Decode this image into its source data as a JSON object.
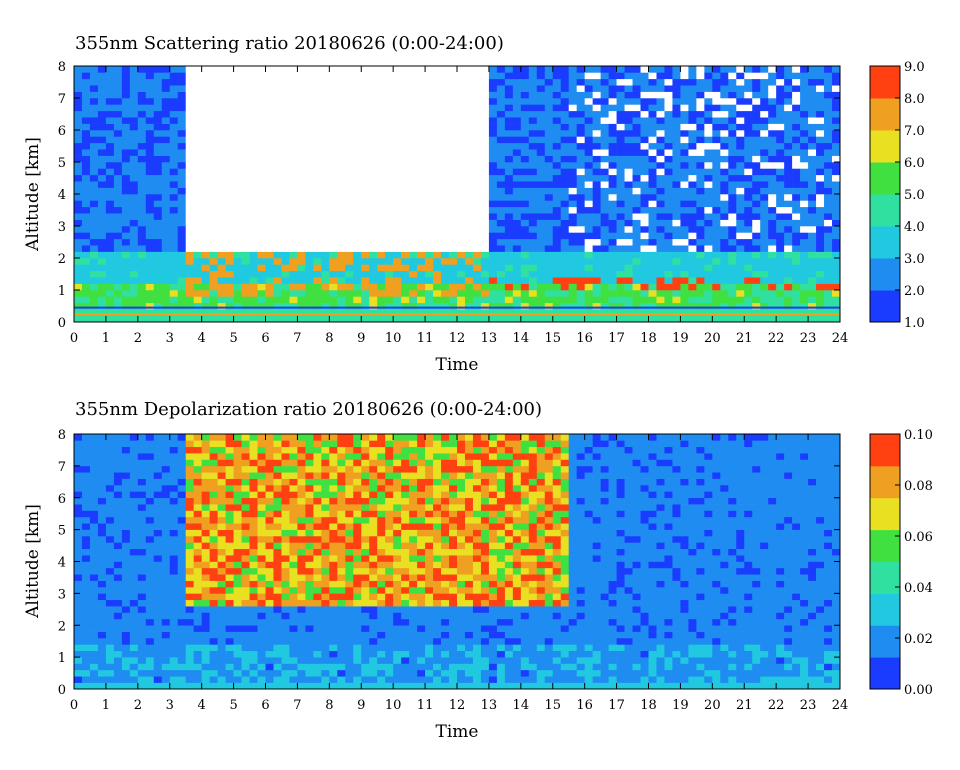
{
  "chart_data": [
    {
      "type": "heatmap",
      "title": "355nm Scattering ratio  20180626 (0:00-24:00)",
      "xlabel": "Time",
      "ylabel": "Altitude [km]",
      "xlim": [
        0,
        24
      ],
      "ylim": [
        0,
        8
      ],
      "x_ticks": [
        "0",
        "1",
        "2",
        "3",
        "4",
        "5",
        "6",
        "7",
        "8",
        "9",
        "10",
        "11",
        "12",
        "13",
        "14",
        "15",
        "16",
        "17",
        "18",
        "19",
        "20",
        "21",
        "22",
        "23",
        "24"
      ],
      "y_ticks": [
        "0",
        "1",
        "2",
        "3",
        "4",
        "5",
        "6",
        "7",
        "8"
      ],
      "colorbar": {
        "range": [
          1.0,
          9.0
        ],
        "ticks": [
          "1.0",
          "2.0",
          "3.0",
          "4.0",
          "5.0",
          "6.0",
          "7.0",
          "8.0",
          "9.0"
        ]
      },
      "colormap": [
        "#1a3cff",
        "#1e8cf0",
        "#20c8e0",
        "#30e0a0",
        "#40e040",
        "#e8e020",
        "#f0a020",
        "#ff4010"
      ],
      "features": {
        "cloud_gap_hours": [
          3.4,
          13.0
        ],
        "low_cloud_top_km": 2.0,
        "boundary_layer_top_km": 1.0,
        "surface_line_km": 0.45
      }
    },
    {
      "type": "heatmap",
      "title": "355nm Depolarization ratio  20180626 (0:00-24:00)",
      "xlabel": "Time",
      "ylabel": "Altitude [km]",
      "xlim": [
        0,
        24
      ],
      "ylim": [
        0,
        8
      ],
      "x_ticks": [
        "0",
        "1",
        "2",
        "3",
        "4",
        "5",
        "6",
        "7",
        "8",
        "9",
        "10",
        "11",
        "12",
        "13",
        "14",
        "15",
        "16",
        "17",
        "18",
        "19",
        "20",
        "21",
        "22",
        "23",
        "24"
      ],
      "y_ticks": [
        "0",
        "1",
        "2",
        "3",
        "4",
        "5",
        "6",
        "7",
        "8"
      ],
      "colorbar": {
        "range": [
          0.0,
          0.1
        ],
        "ticks": [
          "0.00",
          "0.02",
          "0.04",
          "0.06",
          "0.08",
          "0.10"
        ]
      },
      "colormap": [
        "#1a3cff",
        "#1e8cf0",
        "#20c8e0",
        "#30e0a0",
        "#40e040",
        "#e8e020",
        "#f0a020",
        "#ff4010"
      ],
      "features": {
        "high_depol_hours": [
          3.5,
          15.5
        ],
        "high_depol_base_km": 2.5
      }
    }
  ]
}
